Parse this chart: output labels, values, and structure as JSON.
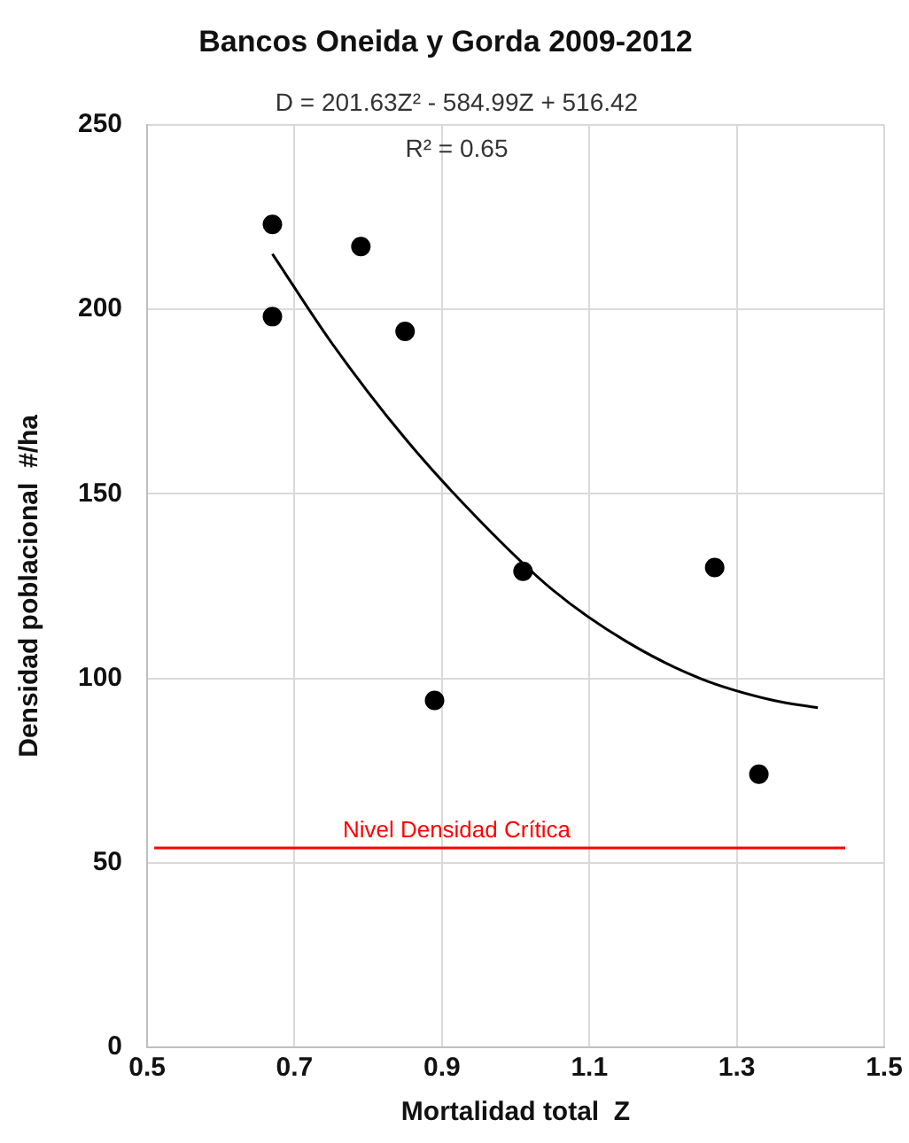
{
  "chart_data": {
    "type": "scatter",
    "title": "Bancos Oneida y Gorda 2009-2012",
    "xlabel": "Mortalidad total  Z",
    "ylabel": "Densidad poblacional  #/ha",
    "x": [
      0.67,
      0.67,
      0.79,
      0.85,
      1.01,
      1.27,
      0.89,
      1.33
    ],
    "series": [
      {
        "color": "#000000",
        "marker": "circle",
        "values": [
          223,
          198,
          217,
          194,
          129,
          130,
          94,
          74
        ]
      },
      {
        "type": "line",
        "color": "#000000",
        "x": [
          0.67,
          0.75,
          0.85,
          0.95,
          1.05,
          1.15,
          1.25,
          1.35,
          1.41
        ],
        "values": [
          215,
          191,
          165,
          143,
          124,
          110,
          100,
          94,
          92
        ]
      }
    ],
    "xlim": [
      0.5,
      1.5
    ],
    "xticks": [
      0.5,
      0.7,
      0.9,
      1.1,
      1.3,
      1.5
    ],
    "ylim": [
      0,
      250
    ],
    "yticks": [
      0,
      50,
      100,
      150,
      200,
      250
    ],
    "ref_lines": [
      {
        "axis": "y",
        "value": 54,
        "label": "Nivel Densidad Crítica",
        "color": "#ff0000"
      }
    ],
    "annotations": [
      "D = 201.63Z² - 584.99Z + 516.42",
      "R² = 0.65"
    ],
    "grid": true,
    "legend": false
  }
}
